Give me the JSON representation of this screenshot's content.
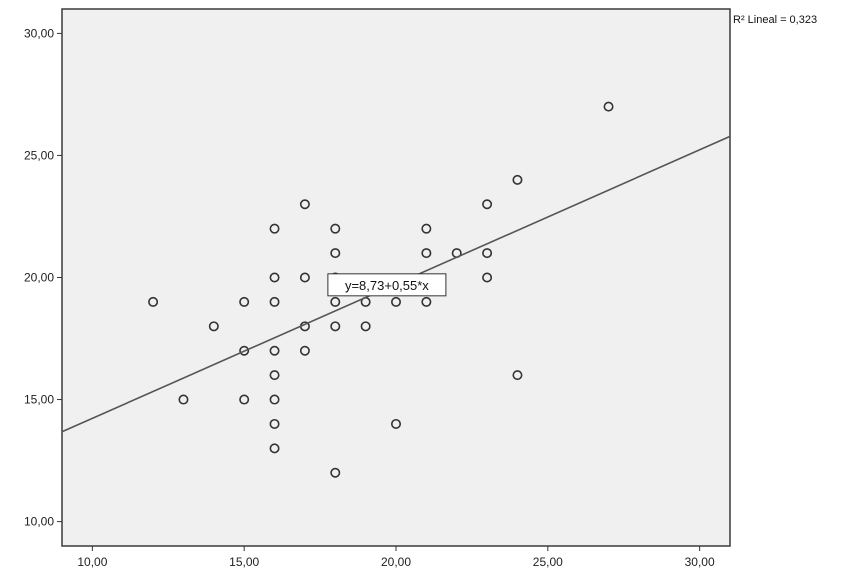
{
  "chart_data": {
    "type": "scatter",
    "xlim": [
      9,
      31
    ],
    "ylim": [
      9,
      31
    ],
    "x_ticks": [
      10,
      15,
      20,
      25,
      30
    ],
    "y_ticks": [
      10,
      15,
      20,
      25,
      30
    ],
    "x_tick_labels": [
      "10,00",
      "15,00",
      "20,00",
      "25,00",
      "30,00"
    ],
    "y_tick_labels": [
      "10,00",
      "15,00",
      "20,00",
      "25,00",
      "30,00"
    ],
    "grid": false,
    "background_color": "#f0f0f0",
    "marker_color": "#333333",
    "fit_line": {
      "intercept": 8.73,
      "slope": 0.55,
      "color": "#555555"
    },
    "equation_label": "y=8,73+0,55*x",
    "equation_anchor": {
      "x": 19.7,
      "y": 19.7
    },
    "r2_label": "R² Lineal = 0,323",
    "points": [
      {
        "x": 12,
        "y": 19
      },
      {
        "x": 13,
        "y": 15
      },
      {
        "x": 14,
        "y": 18
      },
      {
        "x": 15,
        "y": 19
      },
      {
        "x": 15,
        "y": 17
      },
      {
        "x": 15,
        "y": 15
      },
      {
        "x": 16,
        "y": 22
      },
      {
        "x": 16,
        "y": 20
      },
      {
        "x": 16,
        "y": 19
      },
      {
        "x": 16,
        "y": 17
      },
      {
        "x": 16,
        "y": 16
      },
      {
        "x": 16,
        "y": 15
      },
      {
        "x": 16,
        "y": 14
      },
      {
        "x": 16,
        "y": 13
      },
      {
        "x": 17,
        "y": 23
      },
      {
        "x": 17,
        "y": 20
      },
      {
        "x": 17,
        "y": 18
      },
      {
        "x": 17,
        "y": 17
      },
      {
        "x": 18,
        "y": 22
      },
      {
        "x": 18,
        "y": 21
      },
      {
        "x": 18,
        "y": 20
      },
      {
        "x": 18,
        "y": 19
      },
      {
        "x": 18,
        "y": 18
      },
      {
        "x": 18,
        "y": 12
      },
      {
        "x": 19,
        "y": 19
      },
      {
        "x": 19,
        "y": 18
      },
      {
        "x": 20,
        "y": 19
      },
      {
        "x": 20,
        "y": 14
      },
      {
        "x": 21,
        "y": 22
      },
      {
        "x": 21,
        "y": 21
      },
      {
        "x": 21,
        "y": 19
      },
      {
        "x": 22,
        "y": 21
      },
      {
        "x": 23,
        "y": 23
      },
      {
        "x": 23,
        "y": 21
      },
      {
        "x": 23,
        "y": 20
      },
      {
        "x": 24,
        "y": 24
      },
      {
        "x": 24,
        "y": 16
      },
      {
        "x": 27,
        "y": 27
      }
    ]
  }
}
